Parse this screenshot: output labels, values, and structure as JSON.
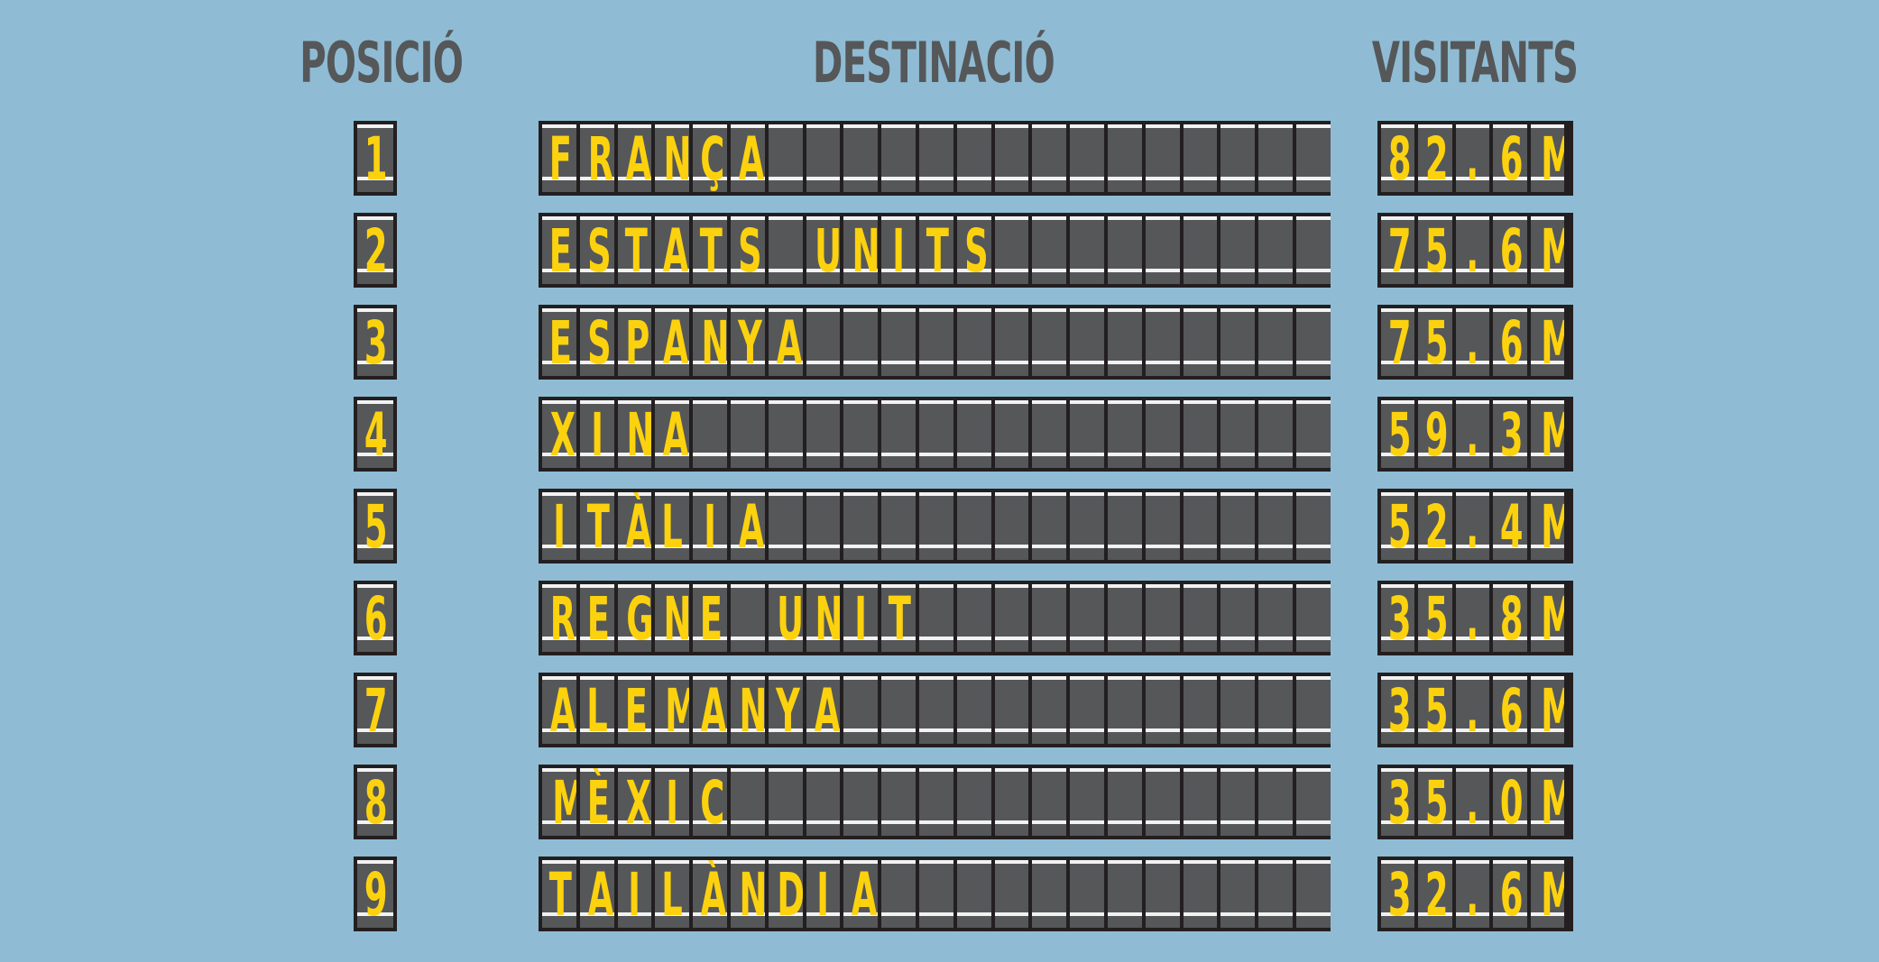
{
  "headers": {
    "position": "POSICIÓ",
    "destination": "DESTINACIÓ",
    "visitors": "VISITANTS"
  },
  "colors": {
    "background": "#8fbcd4",
    "board": "#231f20",
    "tile": "#555759",
    "text": "#fcd20f",
    "header": "#555759"
  },
  "rows": [
    {
      "position": "1",
      "destination": "FRANÇA",
      "visitors": "82.6M"
    },
    {
      "position": "2",
      "destination": "ESTATS UNITS",
      "visitors": "75.6M"
    },
    {
      "position": "3",
      "destination": "ESPANYA",
      "visitors": "75.6M"
    },
    {
      "position": "4",
      "destination": "XINA",
      "visitors": "59.3M"
    },
    {
      "position": "5",
      "destination": "ITÀLIA",
      "visitors": "52.4M"
    },
    {
      "position": "6",
      "destination": "REGNE UNIT",
      "visitors": "35.8M"
    },
    {
      "position": "7",
      "destination": "ALEMANYA",
      "visitors": "35.6M"
    },
    {
      "position": "8",
      "destination": "MÈXIC",
      "visitors": "35.0M"
    },
    {
      "position": "9",
      "destination": "TAILÀNDIA",
      "visitors": "32.6M"
    }
  ]
}
